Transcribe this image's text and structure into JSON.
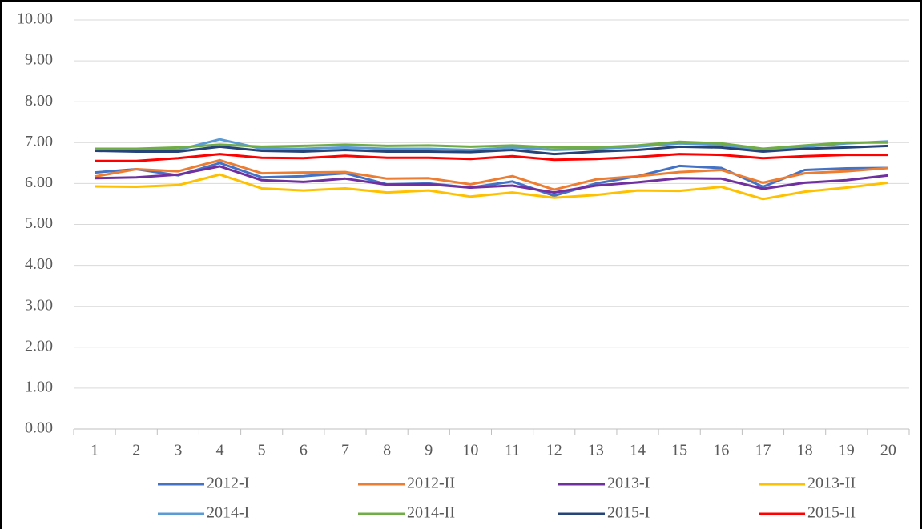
{
  "chart_data": {
    "type": "line",
    "categories": [
      "1",
      "2",
      "3",
      "4",
      "5",
      "6",
      "7",
      "8",
      "9",
      "10",
      "11",
      "12",
      "13",
      "14",
      "15",
      "16",
      "17",
      "18",
      "19",
      "20"
    ],
    "series": [
      {
        "name": "2012-I",
        "color": "#4472c4",
        "values": [
          6.27,
          6.35,
          6.2,
          6.5,
          6.15,
          6.18,
          6.25,
          5.98,
          6.0,
          5.9,
          6.05,
          5.7,
          6.0,
          6.18,
          6.43,
          6.38,
          5.92,
          6.33,
          6.37,
          6.38
        ]
      },
      {
        "name": "2012-II",
        "color": "#ed7d31",
        "values": [
          6.17,
          6.35,
          6.3,
          6.57,
          6.25,
          6.27,
          6.28,
          6.12,
          6.13,
          5.98,
          6.18,
          5.85,
          6.1,
          6.18,
          6.28,
          6.33,
          6.02,
          6.25,
          6.3,
          6.38
        ]
      },
      {
        "name": "2013-I",
        "color": "#7030a0",
        "values": [
          6.13,
          6.15,
          6.22,
          6.42,
          6.08,
          6.04,
          6.12,
          5.97,
          5.98,
          5.9,
          5.95,
          5.78,
          5.95,
          6.03,
          6.13,
          6.12,
          5.87,
          6.02,
          6.08,
          6.2
        ]
      },
      {
        "name": "2013-II",
        "color": "#ffc000",
        "values": [
          5.93,
          5.92,
          5.96,
          6.22,
          5.88,
          5.83,
          5.88,
          5.78,
          5.83,
          5.68,
          5.78,
          5.65,
          5.72,
          5.83,
          5.82,
          5.92,
          5.62,
          5.8,
          5.9,
          6.02
        ]
      },
      {
        "name": "2014-I",
        "color": "#5b9bd5",
        "values": [
          6.85,
          6.82,
          6.82,
          7.08,
          6.85,
          6.85,
          6.88,
          6.85,
          6.85,
          6.82,
          6.88,
          6.82,
          6.85,
          6.9,
          6.98,
          6.95,
          6.8,
          6.9,
          6.98,
          7.03
        ]
      },
      {
        "name": "2014-II",
        "color": "#70ad47",
        "values": [
          6.85,
          6.85,
          6.88,
          6.95,
          6.9,
          6.92,
          6.95,
          6.92,
          6.93,
          6.9,
          6.93,
          6.88,
          6.88,
          6.93,
          7.02,
          6.98,
          6.85,
          6.93,
          7.0,
          7.0
        ]
      },
      {
        "name": "2015-I",
        "color": "#264478",
        "values": [
          6.8,
          6.78,
          6.78,
          6.9,
          6.8,
          6.78,
          6.82,
          6.78,
          6.78,
          6.77,
          6.82,
          6.72,
          6.78,
          6.82,
          6.9,
          6.88,
          6.78,
          6.85,
          6.88,
          6.92
        ]
      },
      {
        "name": "2015-II",
        "color": "#ff0000",
        "values": [
          6.55,
          6.55,
          6.62,
          6.72,
          6.63,
          6.62,
          6.68,
          6.63,
          6.63,
          6.6,
          6.67,
          6.58,
          6.6,
          6.65,
          6.72,
          6.7,
          6.62,
          6.67,
          6.7,
          6.7
        ]
      }
    ],
    "ylim": [
      0,
      10
    ],
    "yticks": [
      {
        "value": 0,
        "label": "0.00"
      },
      {
        "value": 1,
        "label": "1.00"
      },
      {
        "value": 2,
        "label": "2.00"
      },
      {
        "value": 3,
        "label": "3.00"
      },
      {
        "value": 4,
        "label": "4.00"
      },
      {
        "value": 5,
        "label": "5.00"
      },
      {
        "value": 6,
        "label": "6.00"
      },
      {
        "value": 7,
        "label": "7.00"
      },
      {
        "value": 8,
        "label": "8.00"
      },
      {
        "value": 9,
        "label": "9.00"
      },
      {
        "value": 10,
        "label": "10.00"
      }
    ],
    "grid": true,
    "legend": "bottom"
  }
}
